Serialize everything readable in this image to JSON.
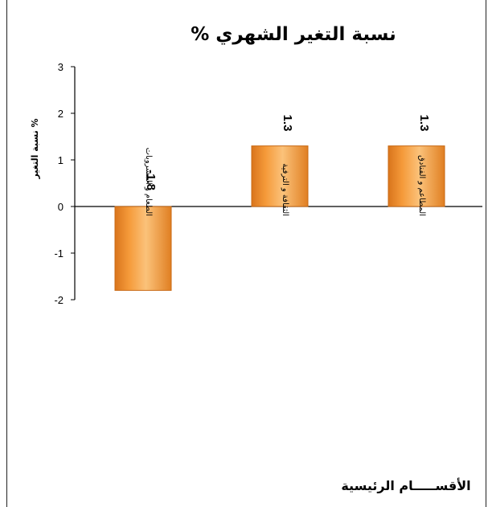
{
  "chart_data": {
    "type": "bar",
    "title": "نسبة التغير الشهري %",
    "ylabel": "نسبة التغير %",
    "xlabel": "الأقســـــام الرئيسية",
    "categories": [
      "الطعام و المشروبات",
      "الثقافة و الترفية",
      "المطاعم و الفنادق"
    ],
    "values": [
      -1.8,
      1.3,
      1.3
    ],
    "data_labels": [
      "-1.8",
      "1.3",
      "1.3"
    ],
    "ylim": [
      -2,
      3
    ],
    "yticks": [
      3,
      2,
      1,
      0,
      -1,
      -2
    ],
    "grid": false,
    "legend": "none",
    "colors": {
      "bar_fill": "#F59A3A",
      "bar_light": "#FBC27A",
      "bar_dark": "#D9751C",
      "axis": "#000000"
    }
  }
}
